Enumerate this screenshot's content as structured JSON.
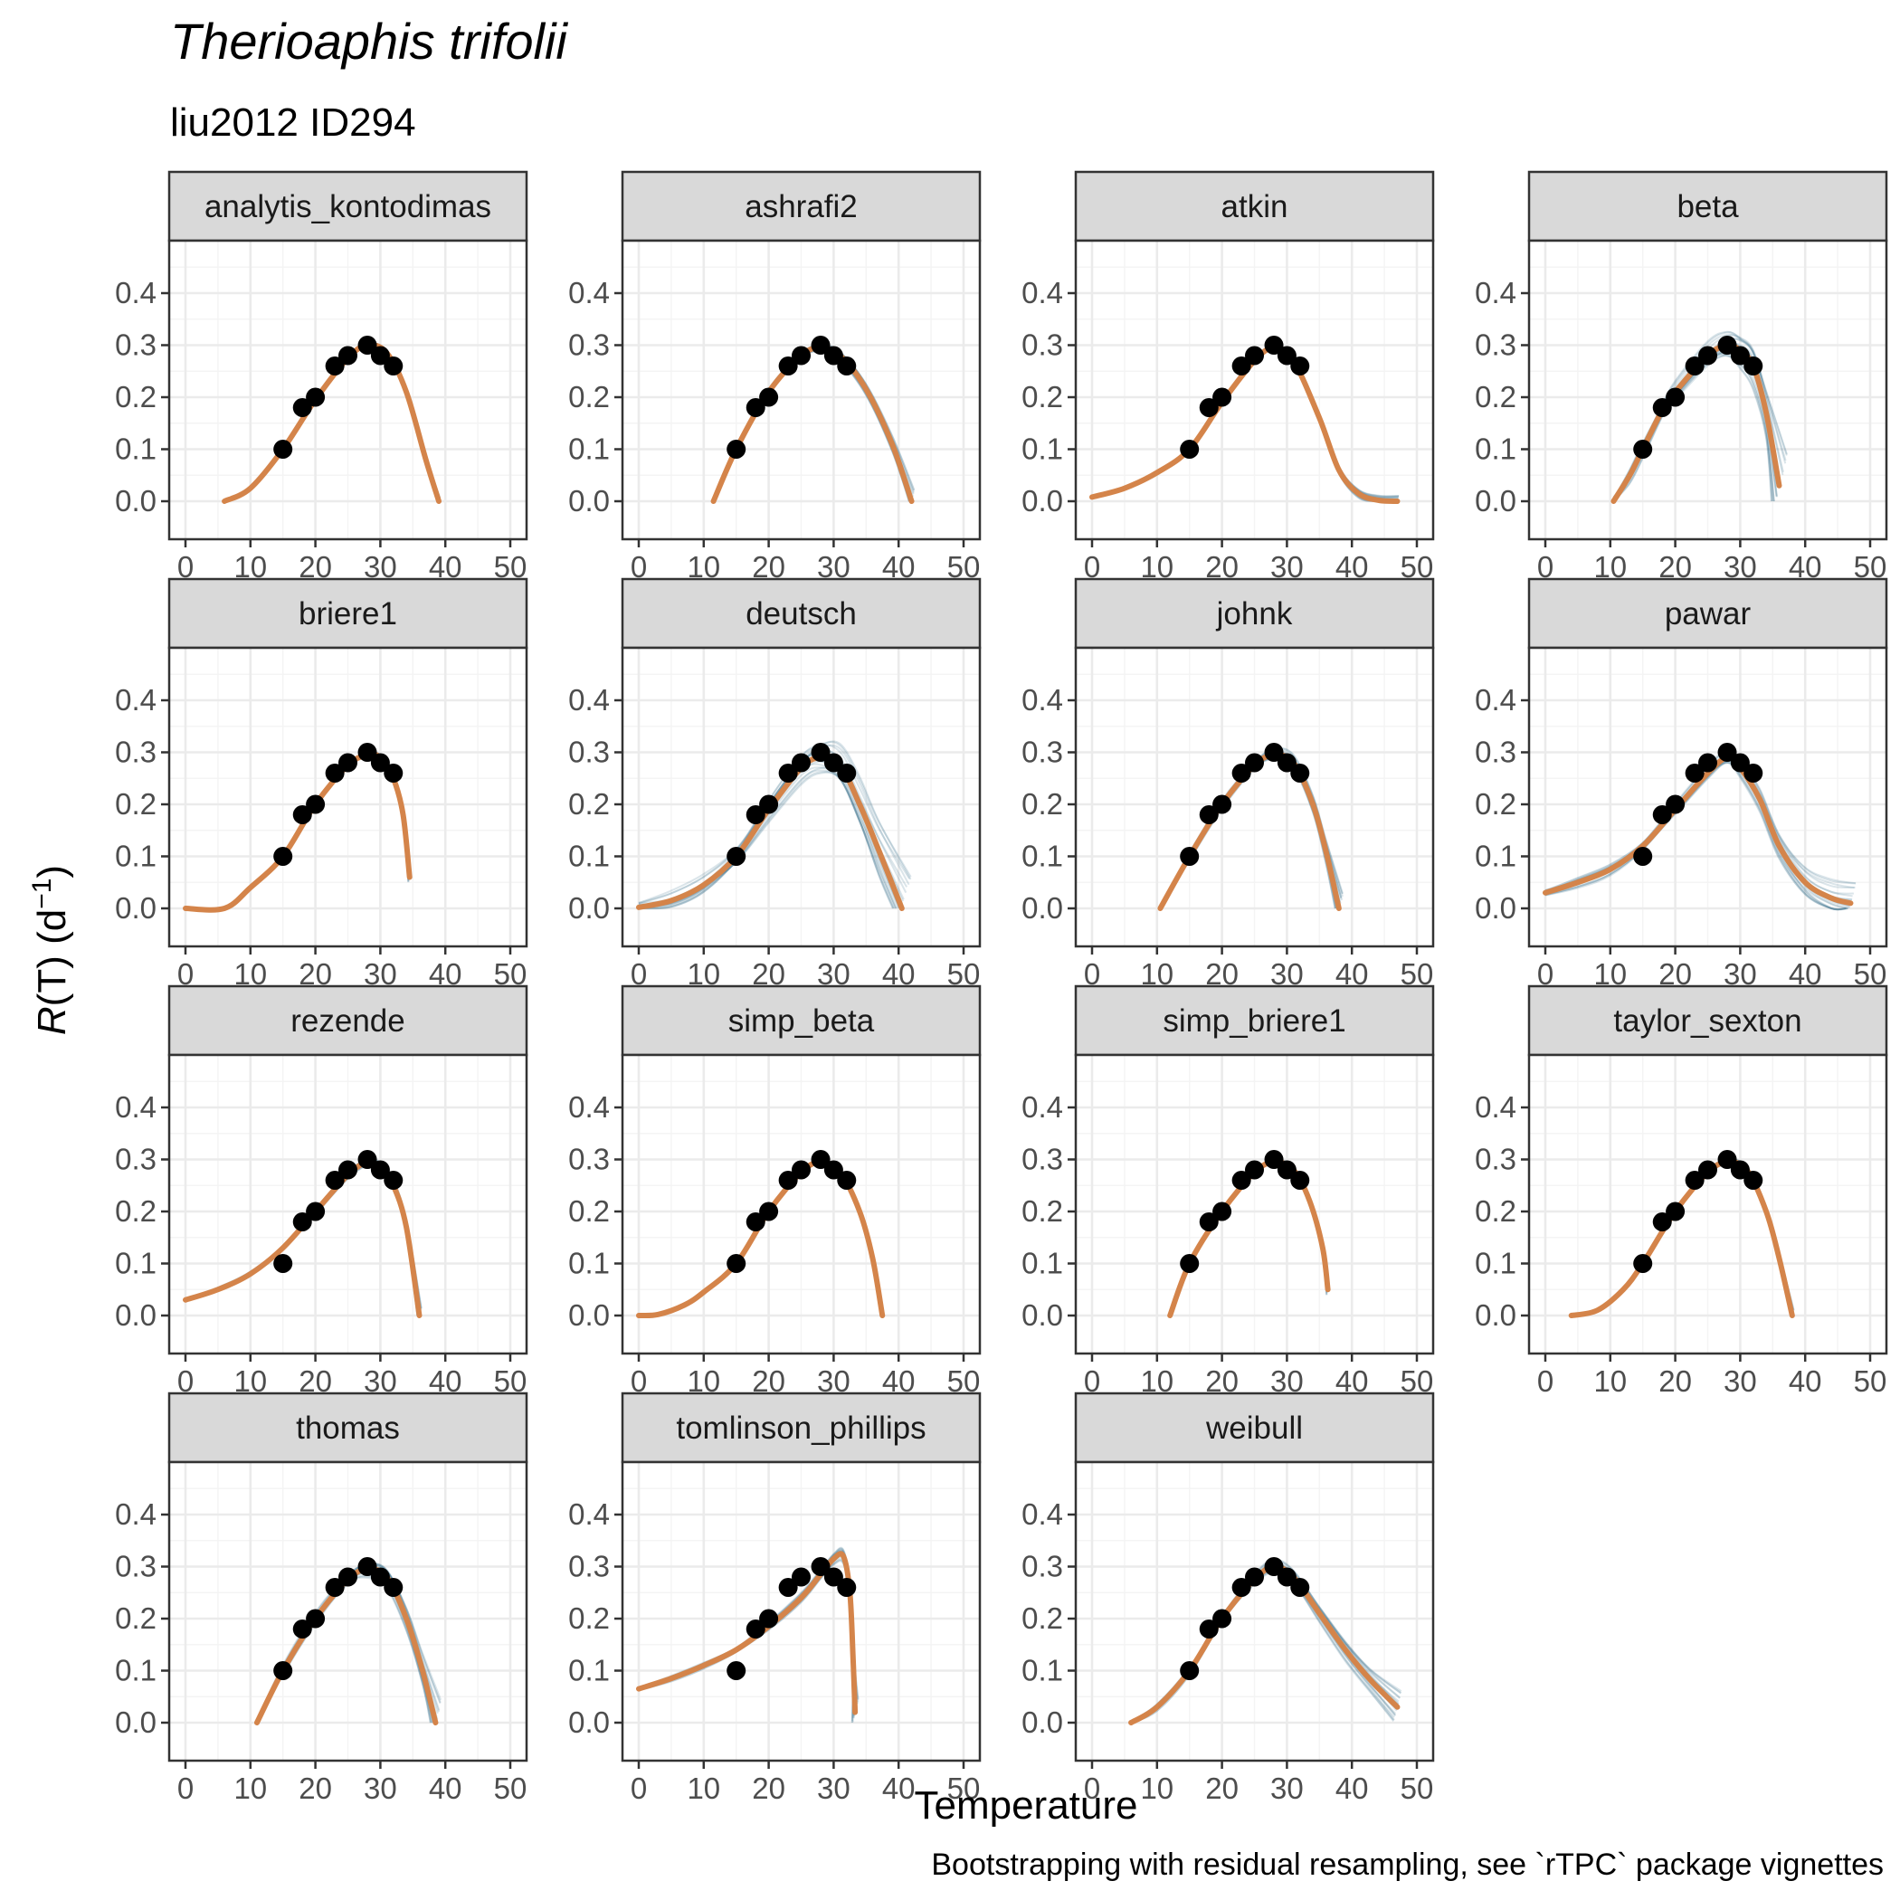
{
  "title": "Therioaphis trifolii",
  "subtitle": "liu2012 ID294",
  "caption": "Bootstrapping with residual resampling, see `rTPC` package vignettes",
  "colors": {
    "fit": "#d4844a",
    "bootstrap": "#1f5f7a",
    "points": "#000000",
    "strip": "#d9d9d9"
  },
  "chart_data": {
    "type": "line",
    "facet_layout": "4 columns x 4 rows, fixed scales",
    "xlabel": "Temperature",
    "ylabel": {
      "italic": "R",
      "rest": "(T) (d",
      "sup": "−1",
      "close": ")"
    },
    "xlim": [
      0,
      50
    ],
    "ylim": [
      0,
      0.45
    ],
    "xticks": [
      0,
      10,
      20,
      30,
      40,
      50
    ],
    "yticks": [
      "0.0",
      "0.1",
      "0.2",
      "0.3",
      "0.4"
    ],
    "grid": true,
    "observed": {
      "x": [
        15,
        18,
        20,
        23,
        25,
        28,
        30,
        32
      ],
      "y": [
        0.1,
        0.18,
        0.2,
        0.26,
        0.28,
        0.3,
        0.28,
        0.26
      ]
    },
    "panels": [
      {
        "name": "analytis_kontodimas",
        "fit": [
          [
            6,
            0
          ],
          [
            10,
            0.025
          ],
          [
            15,
            0.1
          ],
          [
            20,
            0.195
          ],
          [
            25,
            0.275
          ],
          [
            28,
            0.3
          ],
          [
            31,
            0.285
          ],
          [
            34,
            0.21
          ],
          [
            37,
            0.08
          ],
          [
            39,
            0
          ]
        ],
        "boot_spread": 0.004
      },
      {
        "name": "ashrafi2",
        "fit": [
          [
            11.5,
            0
          ],
          [
            15,
            0.1
          ],
          [
            20,
            0.21
          ],
          [
            25,
            0.28
          ],
          [
            28,
            0.295
          ],
          [
            31,
            0.28
          ],
          [
            35,
            0.215
          ],
          [
            39,
            0.11
          ],
          [
            42,
            0
          ]
        ],
        "boot_spread": 0.01
      },
      {
        "name": "atkin",
        "fit": [
          [
            0,
            0.008
          ],
          [
            5,
            0.025
          ],
          [
            10,
            0.055
          ],
          [
            15,
            0.1
          ],
          [
            20,
            0.19
          ],
          [
            25,
            0.27
          ],
          [
            28,
            0.295
          ],
          [
            31,
            0.27
          ],
          [
            35,
            0.16
          ],
          [
            38,
            0.06
          ],
          [
            41,
            0.015
          ],
          [
            44,
            0.002
          ],
          [
            47,
            0
          ]
        ],
        "boot_spread": 0.006
      },
      {
        "name": "beta",
        "fit": [
          [
            10.5,
            0
          ],
          [
            13,
            0.05
          ],
          [
            15,
            0.1
          ],
          [
            18,
            0.175
          ],
          [
            20,
            0.21
          ],
          [
            25,
            0.28
          ],
          [
            28,
            0.3
          ],
          [
            30,
            0.29
          ],
          [
            32,
            0.26
          ],
          [
            34,
            0.17
          ],
          [
            36,
            0.03
          ]
        ],
        "boot_spread": 0.03
      },
      {
        "name": "briere1",
        "fit": [
          [
            0,
            0
          ],
          [
            6,
            0
          ],
          [
            10,
            0.04
          ],
          [
            15,
            0.1
          ],
          [
            20,
            0.2
          ],
          [
            25,
            0.275
          ],
          [
            28,
            0.295
          ],
          [
            30,
            0.29
          ],
          [
            32,
            0.25
          ],
          [
            33.5,
            0.18
          ],
          [
            34.5,
            0.06
          ]
        ],
        "boot_spread": 0.005
      },
      {
        "name": "deutsch",
        "fit": [
          [
            0,
            0.002
          ],
          [
            5,
            0.015
          ],
          [
            10,
            0.045
          ],
          [
            15,
            0.1
          ],
          [
            20,
            0.19
          ],
          [
            25,
            0.27
          ],
          [
            28,
            0.29
          ],
          [
            31,
            0.275
          ],
          [
            34,
            0.2
          ],
          [
            37,
            0.11
          ],
          [
            40.5,
            0
          ]
        ],
        "boot_spread": 0.035
      },
      {
        "name": "johnk",
        "fit": [
          [
            10.5,
            0
          ],
          [
            15,
            0.1
          ],
          [
            20,
            0.2
          ],
          [
            25,
            0.275
          ],
          [
            28,
            0.295
          ],
          [
            31,
            0.28
          ],
          [
            34,
            0.2
          ],
          [
            36,
            0.11
          ],
          [
            38,
            0
          ]
        ],
        "boot_spread": 0.015
      },
      {
        "name": "pawar",
        "fit": [
          [
            0,
            0.03
          ],
          [
            5,
            0.05
          ],
          [
            10,
            0.075
          ],
          [
            15,
            0.12
          ],
          [
            20,
            0.19
          ],
          [
            25,
            0.26
          ],
          [
            28,
            0.29
          ],
          [
            30,
            0.27
          ],
          [
            33,
            0.21
          ],
          [
            36,
            0.12
          ],
          [
            40,
            0.05
          ],
          [
            44,
            0.02
          ],
          [
            47,
            0.01
          ]
        ],
        "boot_spread": 0.02
      },
      {
        "name": "rezende",
        "fit": [
          [
            0,
            0.03
          ],
          [
            5,
            0.05
          ],
          [
            10,
            0.08
          ],
          [
            15,
            0.13
          ],
          [
            20,
            0.2
          ],
          [
            25,
            0.27
          ],
          [
            28,
            0.295
          ],
          [
            30,
            0.285
          ],
          [
            32,
            0.25
          ],
          [
            34,
            0.17
          ],
          [
            36,
            0
          ]
        ],
        "boot_spread": 0.008
      },
      {
        "name": "simp_beta",
        "fit": [
          [
            0,
            0
          ],
          [
            3,
            0.002
          ],
          [
            7,
            0.02
          ],
          [
            10,
            0.045
          ],
          [
            15,
            0.1
          ],
          [
            20,
            0.2
          ],
          [
            25,
            0.275
          ],
          [
            28,
            0.295
          ],
          [
            31,
            0.275
          ],
          [
            34,
            0.2
          ],
          [
            36,
            0.11
          ],
          [
            37.5,
            0
          ]
        ],
        "boot_spread": 0.004
      },
      {
        "name": "simp_briere1",
        "fit": [
          [
            12,
            0
          ],
          [
            15,
            0.1
          ],
          [
            20,
            0.2
          ],
          [
            25,
            0.275
          ],
          [
            28,
            0.295
          ],
          [
            31,
            0.28
          ],
          [
            33.5,
            0.22
          ],
          [
            35.5,
            0.13
          ],
          [
            36.3,
            0.05
          ]
        ],
        "boot_spread": 0.005
      },
      {
        "name": "taylor_sexton",
        "fit": [
          [
            4,
            0
          ],
          [
            8,
            0.01
          ],
          [
            12,
            0.05
          ],
          [
            15,
            0.1
          ],
          [
            20,
            0.2
          ],
          [
            25,
            0.275
          ],
          [
            28,
            0.295
          ],
          [
            31,
            0.28
          ],
          [
            34,
            0.2
          ],
          [
            36,
            0.11
          ],
          [
            38,
            0
          ]
        ],
        "boot_spread": 0.006
      },
      {
        "name": "thomas",
        "fit": [
          [
            11,
            0
          ],
          [
            15,
            0.1
          ],
          [
            20,
            0.2
          ],
          [
            25,
            0.275
          ],
          [
            28,
            0.295
          ],
          [
            31,
            0.28
          ],
          [
            34,
            0.2
          ],
          [
            36.5,
            0.1
          ],
          [
            38.5,
            0
          ]
        ],
        "boot_spread": 0.02
      },
      {
        "name": "tomlinson_phillips",
        "fit": [
          [
            0,
            0.065
          ],
          [
            5,
            0.085
          ],
          [
            10,
            0.11
          ],
          [
            15,
            0.14
          ],
          [
            20,
            0.185
          ],
          [
            25,
            0.24
          ],
          [
            28,
            0.285
          ],
          [
            30,
            0.315
          ],
          [
            31.5,
            0.32
          ],
          [
            32.5,
            0.25
          ],
          [
            33,
            0.12
          ],
          [
            33.3,
            0.02
          ]
        ],
        "boot_spread": 0.012
      },
      {
        "name": "weibull",
        "fit": [
          [
            6,
            0
          ],
          [
            10,
            0.03
          ],
          [
            15,
            0.1
          ],
          [
            20,
            0.2
          ],
          [
            25,
            0.275
          ],
          [
            28,
            0.3
          ],
          [
            31,
            0.28
          ],
          [
            35,
            0.21
          ],
          [
            39,
            0.14
          ],
          [
            43,
            0.08
          ],
          [
            47,
            0.03
          ]
        ],
        "boot_spread": 0.015
      }
    ]
  }
}
